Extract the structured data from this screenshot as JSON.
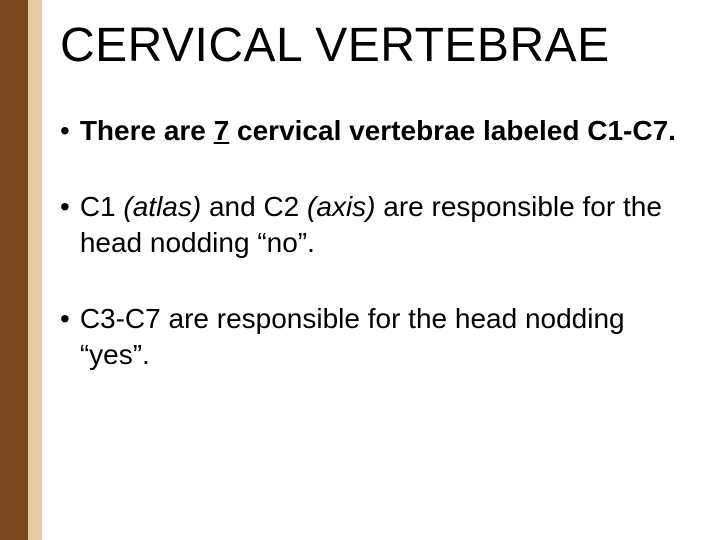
{
  "styling": {
    "stripe_dark_color": "#7a471f",
    "stripe_light_color": "#e8caa3",
    "background_color": "#ffffff",
    "title_color": "#1a1a1a",
    "text_color": "#1a1a1a",
    "title_fontsize": 48,
    "body_fontsize": 28
  },
  "title": "CERVICAL VERTEBRAE",
  "bullets": {
    "b1": {
      "pre": "There are ",
      "num": "7",
      "post": " cervical vertebrae labeled C1-C7."
    },
    "b2": {
      "s1": "C1 ",
      "i1": "(atlas)",
      "s2": " and C2 ",
      "i2": "(axis)",
      "s3": " are responsible for the head nodding “no”."
    },
    "b3": {
      "text": "C3-C7 are responsible for the head nodding “yes”."
    }
  }
}
